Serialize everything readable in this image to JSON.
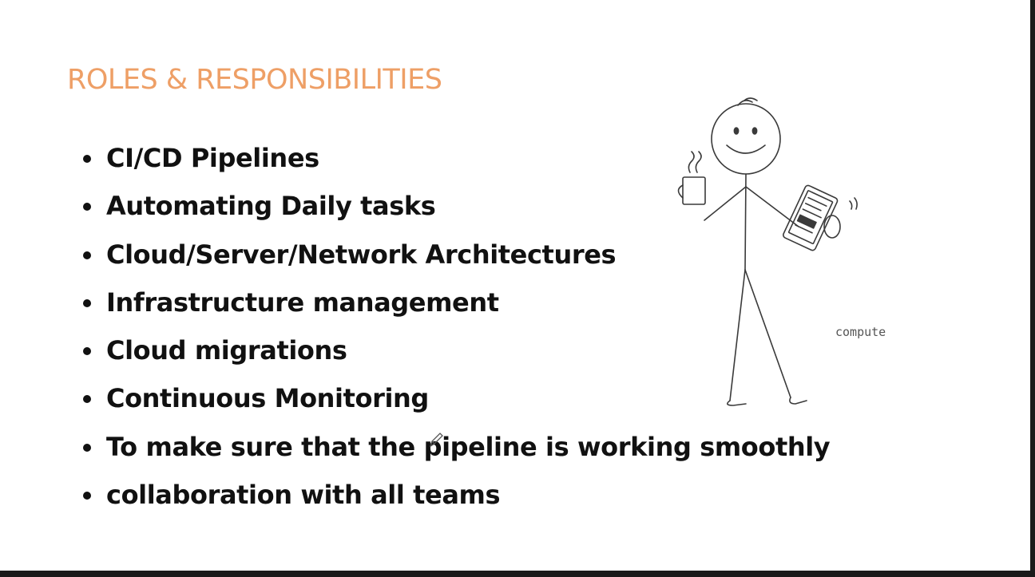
{
  "slide": {
    "title": "ROLES & RESPONSIBILITIES",
    "title_color": "#ee9f66",
    "bullets": [
      "CI/CD Pipelines",
      "Automating Daily tasks",
      "Cloud/Server/Network Architectures",
      "Infrastructure management",
      "Cloud migrations",
      "Continuous Monitoring",
      "To make sure that the pipeline is working smoothly",
      "collaboration with all teams"
    ]
  },
  "illustration": {
    "icon": "stick-figure-with-coffee-and-tablet",
    "caption": "compute"
  },
  "cursor": {
    "icon": "pen-cursor-icon"
  }
}
